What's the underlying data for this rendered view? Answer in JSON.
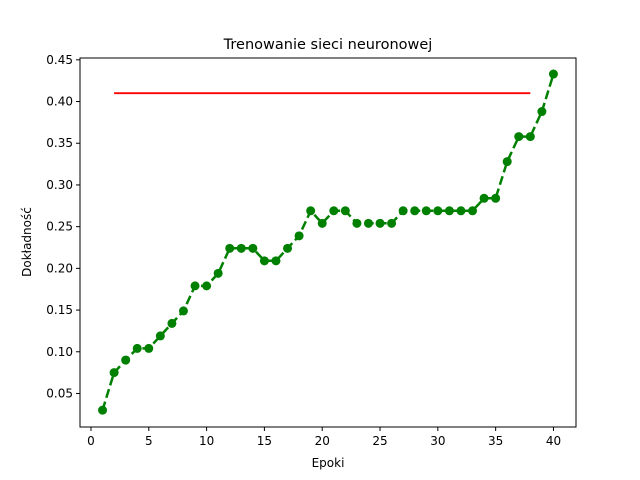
{
  "chart_data": {
    "type": "line",
    "title": "Trenowanie sieci neuronowej",
    "xlabel": "Epoki",
    "ylabel": "Dokładność",
    "xlim": [
      -0.95,
      41.95
    ],
    "ylim": [
      0.0098,
      0.4522
    ],
    "xticks": [
      0,
      5,
      10,
      15,
      20,
      25,
      30,
      35,
      40
    ],
    "yticks": [
      0.05,
      0.1,
      0.15,
      0.2,
      0.25,
      0.3,
      0.35,
      0.4,
      0.45
    ],
    "ytick_labels": [
      "0.05",
      "0.10",
      "0.15",
      "0.20",
      "0.25",
      "0.30",
      "0.35",
      "0.40",
      "0.45"
    ],
    "grid": false,
    "series": [
      {
        "style": "dashed-with-markers",
        "color": "#008000",
        "x": [
          1,
          2,
          3,
          4,
          5,
          6,
          7,
          8,
          9,
          10,
          11,
          12,
          13,
          14,
          15,
          16,
          17,
          18,
          19,
          20,
          21,
          22,
          23,
          24,
          25,
          26,
          27,
          28,
          29,
          30,
          31,
          32,
          33,
          34,
          35,
          36,
          37,
          38,
          39,
          40
        ],
        "values": [
          0.03,
          0.075,
          0.09,
          0.104,
          0.104,
          0.119,
          0.134,
          0.149,
          0.179,
          0.179,
          0.194,
          0.224,
          0.224,
          0.224,
          0.209,
          0.209,
          0.224,
          0.239,
          0.269,
          0.254,
          0.269,
          0.269,
          0.254,
          0.254,
          0.254,
          0.254,
          0.269,
          0.269,
          0.269,
          0.269,
          0.269,
          0.269,
          0.269,
          0.284,
          0.284,
          0.328,
          0.358,
          0.358,
          0.388,
          0.433
        ]
      },
      {
        "style": "solid",
        "color": "#ff0000",
        "x": [
          2,
          38
        ],
        "values": [
          0.41,
          0.41
        ]
      }
    ]
  }
}
